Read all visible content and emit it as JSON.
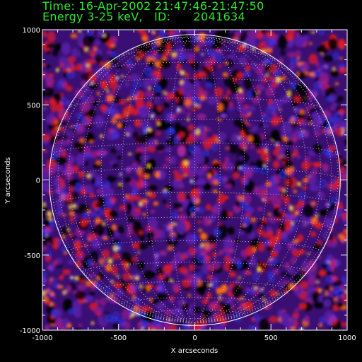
{
  "header": {
    "line1": "Time: 16-Apr-2002 21:47:46-21:47:50",
    "line2": "Energy 3-25 keV,   ID:      2041634"
  },
  "plot": {
    "xlabel": "X arcseconds",
    "ylabel": "Y arcseconds",
    "xlim": [
      -1000,
      1000
    ],
    "ylim": [
      -1000,
      1000
    ],
    "x_ticks": [
      "-1000",
      "-500",
      "0",
      "500",
      "1000"
    ],
    "y_ticks": [
      "1000",
      "500",
      "0",
      "-500",
      "-1000"
    ],
    "solar_radius_arcsec": 955,
    "colors": {
      "frame": "#ffffff",
      "limb": "#ffffff",
      "grid": "#bbbbbb",
      "text": "#ffffff",
      "header": "#2ee62e"
    },
    "colormap": [
      "#000000",
      "#2a0a5e",
      "#5a1fa8",
      "#8a1a8a",
      "#d41a2a",
      "#ff6a10",
      "#ffd040",
      "#ffffff"
    ]
  }
}
